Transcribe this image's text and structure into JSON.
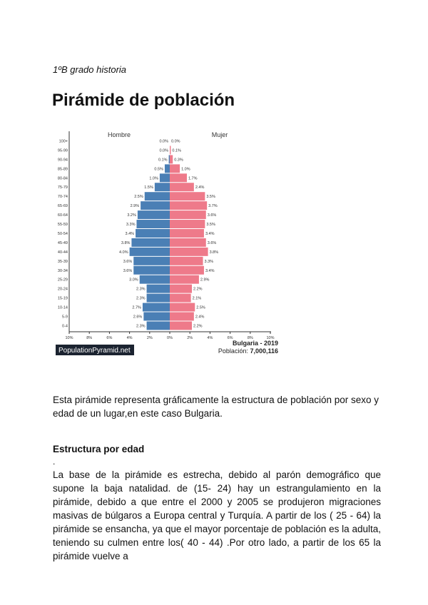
{
  "document": {
    "subtitle": "1ºB grado historia",
    "title": "Pirámide de población",
    "intro": "Esta pirámide representa gráficamente la estructura de población por sexo y edad  de un lugar,en este caso Bulgaria.",
    "section_heading": "Estructura por edad",
    "dot": ".",
    "body": "La base de la pirámide es estrecha, debido al parón demográfico que supone la baja natalidad. de (15- 24) hay un estrangulamiento en la pirámide, debido a que entre el 2000 y 2005 se produjeron migraciones masivas de búlgaros a Europa central y Turquía. A partir de los ( 25 - 64)  la pirámide se ensancha, ya que el mayor porcentaje de población es la adulta, teniendo su culmen entre los( 40 - 44) .Por otro lado, a partir de los 65 la pirámide vuelve a"
  },
  "chart_data": {
    "type": "bar",
    "orientation": "population-pyramid",
    "categories": [
      "100+",
      "95-99",
      "90-94",
      "85-89",
      "80-84",
      "75-79",
      "70-74",
      "65-69",
      "60-64",
      "55-59",
      "50-54",
      "45-49",
      "40-44",
      "35-39",
      "30-34",
      "25-29",
      "20-24",
      "15-19",
      "10-14",
      "5-9",
      "0-4"
    ],
    "series": [
      {
        "name": "Hombre",
        "color": "#4a7fb5",
        "values": [
          0.0,
          0.0,
          0.1,
          0.5,
          1.0,
          1.5,
          2.5,
          2.9,
          3.2,
          3.3,
          3.4,
          3.8,
          4.0,
          3.6,
          3.6,
          3.0,
          2.3,
          2.3,
          2.7,
          2.6,
          2.3
        ]
      },
      {
        "name": "Mujer",
        "color": "#ee7a8a",
        "values": [
          0.0,
          0.1,
          0.3,
          1.0,
          1.7,
          2.4,
          3.5,
          3.7,
          3.6,
          3.5,
          3.4,
          3.6,
          3.8,
          3.3,
          3.4,
          2.9,
          2.2,
          2.1,
          2.5,
          2.4,
          2.2
        ]
      }
    ],
    "x_ticks": [
      "10%",
      "8%",
      "6%",
      "4%",
      "2%",
      "0%",
      "2%",
      "4%",
      "6%",
      "8%",
      "10%"
    ],
    "xlim": [
      -10,
      10
    ],
    "country_year": "Bulgaria - 2019",
    "population_label": "Población:",
    "population": "7,000,116",
    "brand": "PopulationPyramid.net"
  }
}
